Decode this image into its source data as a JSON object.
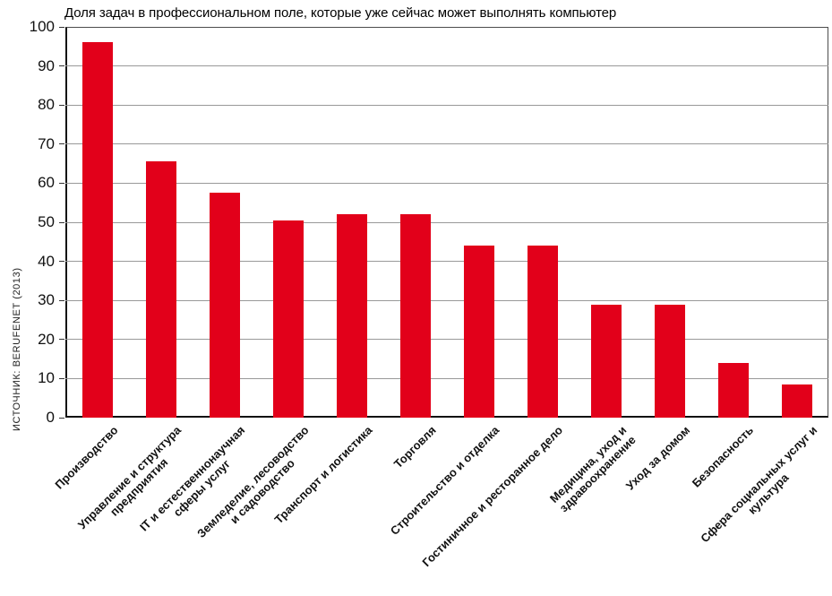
{
  "title": "Доля задач в профессиональном поле, которые уже сейчас может выполнять компьютер",
  "source": "ИСТОЧНИК: BERUFENET (2013)",
  "colors": {
    "bar": "#e2001a",
    "grid": "#999999",
    "axis": "#111111",
    "text": "#111111"
  },
  "chart_data": {
    "type": "bar",
    "title": "Доля задач в профессиональном поле, которые уже сейчас может выполнять компьютер",
    "source": "ИСТОЧНИК: BERUFENET (2013)",
    "categories": [
      "Производство",
      "Управление и структура предприятия",
      "IT и естественнонаучная сферы услуг",
      "Земледелие, лесоводство и садоводство",
      "Транспорт и логистика",
      "Торговля",
      "Строительство и отделка",
      "Гостиничное и ресторанное дело",
      "Медицина, уход и здравоохранение",
      "Уход за домом",
      "Безопасность",
      "Сфера социальных услуг и культура"
    ],
    "category_lines": [
      [
        "Производство"
      ],
      [
        "Управление и структура",
        "предприятия"
      ],
      [
        "IT и естественнонаучная",
        "сферы услуг"
      ],
      [
        "Земледелие, лесоводство",
        "и садоводство"
      ],
      [
        "Транспорт и логистика"
      ],
      [
        "Торговля"
      ],
      [
        "Строительство и отделка"
      ],
      [
        "Гостиничное и ресторанное дело"
      ],
      [
        "Медицина, уход и",
        "здравоохранение"
      ],
      [
        "Уход за домом"
      ],
      [
        "Безопасность"
      ],
      [
        "Сфера социальных услуг и",
        "культура"
      ]
    ],
    "values": [
      96,
      65.5,
      57.5,
      50.5,
      52,
      52,
      44,
      44,
      29,
      29,
      14,
      8.5
    ],
    "xlabel": "",
    "ylabel": "",
    "ylim": [
      0,
      100
    ],
    "yticks": [
      0,
      10,
      20,
      30,
      40,
      50,
      60,
      70,
      80,
      90,
      100
    ],
    "grid": true,
    "legend": false,
    "bar_color": "#e2001a"
  }
}
